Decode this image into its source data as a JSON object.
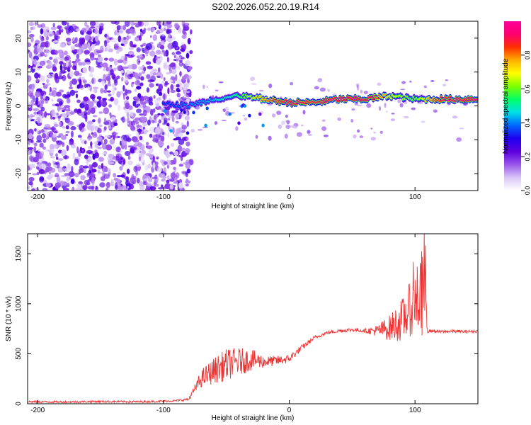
{
  "title": "S202.2026.052.20.19.R14",
  "chart_data": [
    {
      "type": "heatmap",
      "xlabel": "Height of straight line (km)",
      "ylabel": "Frequency (Hz)",
      "xlim": [
        -208,
        150
      ],
      "ylim": [
        -25,
        25
      ],
      "xticks": [
        -200,
        -100,
        0,
        100
      ],
      "yticks": [
        -20,
        -10,
        0,
        10,
        20
      ],
      "colorbar": {
        "label": "Normalized spectral amplitude",
        "range": [
          0,
          1
        ],
        "ticks": [
          0.0,
          0.2,
          0.4,
          0.6,
          0.8
        ],
        "colormap": [
          "#ffffff",
          "#d8c6f6",
          "#9a55ea",
          "#5d00e0",
          "#1f00f0",
          "#0066ff",
          "#00e0e8",
          "#00ff66",
          "#7cff00",
          "#ffff00",
          "#ffae00",
          "#ff3000",
          "#ff0070",
          "#ff0099"
        ]
      },
      "ridge": {
        "description": "strong signal band near 2 Hz",
        "x": [
          -100,
          -80,
          -60,
          -40,
          -20,
          0,
          20,
          40,
          60,
          80,
          100,
          120,
          150
        ],
        "freq_hz": [
          1,
          0,
          2,
          3,
          2,
          1,
          1,
          2,
          2,
          3,
          2,
          2,
          2
        ],
        "amplitude": [
          0.35,
          0.4,
          0.45,
          0.55,
          0.8,
          0.95,
          0.9,
          1.0,
          1.0,
          0.7,
          0.6,
          0.9,
          1.0
        ]
      }
    },
    {
      "type": "line",
      "xlabel": "Height of straight line (km)",
      "ylabel": "SNR (10 * v/v)",
      "xlim": [
        -208,
        150
      ],
      "ylim": [
        0,
        1700
      ],
      "xticks": [
        -200,
        -100,
        0,
        100
      ],
      "yticks": [
        0,
        500,
        1000,
        1500
      ],
      "series": [
        {
          "name": "SNR",
          "color": "#ee3333",
          "x": [
            -208,
            -180,
            -150,
            -120,
            -100,
            -90,
            -80,
            -75,
            -70,
            -60,
            -50,
            -40,
            -30,
            -20,
            -10,
            0,
            10,
            20,
            30,
            40,
            50,
            60,
            70,
            80,
            90,
            95,
            100,
            105,
            108,
            110,
            112,
            120,
            130,
            140,
            150
          ],
          "values": [
            20,
            18,
            22,
            20,
            25,
            30,
            45,
            150,
            250,
            330,
            390,
            420,
            440,
            420,
            430,
            450,
            560,
            660,
            710,
            730,
            740,
            730,
            730,
            760,
            840,
            930,
            1000,
            1100,
            1250,
            720,
            730,
            720,
            725,
            720,
            725
          ],
          "noise_amplitude": [
            10,
            10,
            10,
            10,
            10,
            10,
            15,
            40,
            90,
            130,
            160,
            140,
            110,
            60,
            50,
            40,
            30,
            20,
            15,
            20,
            20,
            20,
            60,
            130,
            220,
            260,
            320,
            420,
            600,
            15,
            15,
            15,
            15,
            15,
            15
          ]
        }
      ]
    }
  ]
}
